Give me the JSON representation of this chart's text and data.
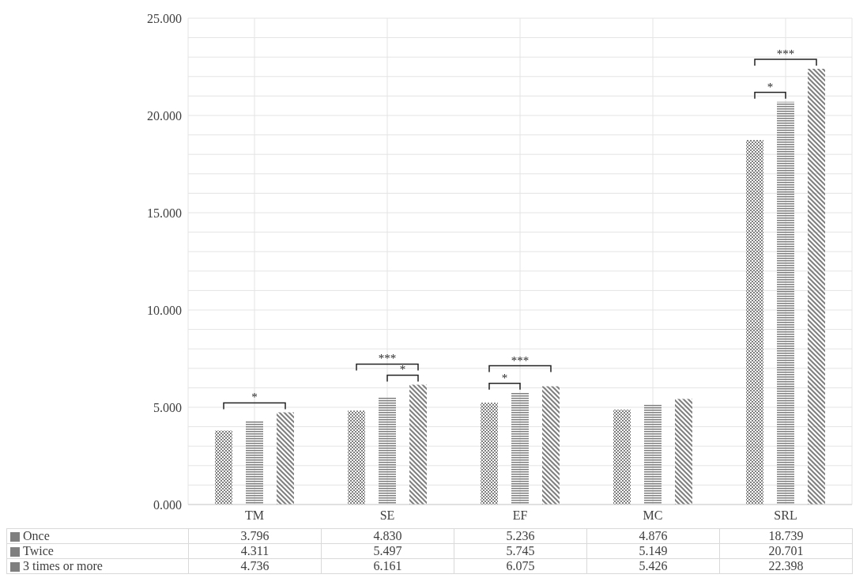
{
  "chart_data": {
    "type": "bar",
    "categories": [
      "TM",
      "SE",
      "EF",
      "MC",
      "SRL"
    ],
    "series": [
      {
        "name": "Once",
        "color": "#7f7f7f",
        "values": [
          3.796,
          4.83,
          5.236,
          4.876,
          18.739
        ],
        "value_labels": [
          "3.796",
          "4.830",
          "5.236",
          "4.876",
          "18.739"
        ]
      },
      {
        "name": "Twice",
        "color": "#7f7f7f",
        "values": [
          4.311,
          5.497,
          5.745,
          5.149,
          20.701
        ],
        "value_labels": [
          "4.311",
          "5.497",
          "5.745",
          "5.149",
          "20.701"
        ]
      },
      {
        "name": "3 times  or more",
        "color": "#7f7f7f",
        "values": [
          4.736,
          6.161,
          6.075,
          5.426,
          22.398
        ],
        "value_labels": [
          "4.736",
          "6.161",
          "6.075",
          "5.426",
          "22.398"
        ]
      }
    ],
    "ylim": [
      0,
      25
    ],
    "yticks": [
      {
        "value": 0,
        "label": "0.000"
      },
      {
        "value": 1,
        "label": null
      },
      {
        "value": 2,
        "label": null
      },
      {
        "value": 3,
        "label": null
      },
      {
        "value": 4,
        "label": null
      },
      {
        "value": 5,
        "label": "5.000"
      },
      {
        "value": 6,
        "label": null
      },
      {
        "value": 7,
        "label": null
      },
      {
        "value": 8,
        "label": null
      },
      {
        "value": 9,
        "label": null
      },
      {
        "value": 10,
        "label": "10.000"
      },
      {
        "value": 11,
        "label": null
      },
      {
        "value": 12,
        "label": null
      },
      {
        "value": 13,
        "label": null
      },
      {
        "value": 14,
        "label": null
      },
      {
        "value": 15,
        "label": "15.000"
      },
      {
        "value": 16,
        "label": null
      },
      {
        "value": 17,
        "label": null
      },
      {
        "value": 18,
        "label": null
      },
      {
        "value": 19,
        "label": null
      },
      {
        "value": 20,
        "label": "20.000"
      },
      {
        "value": 21,
        "label": null
      },
      {
        "value": 22,
        "label": null
      },
      {
        "value": 23,
        "label": null
      },
      {
        "value": 24,
        "label": null
      },
      {
        "value": 25,
        "label": "25.000"
      }
    ],
    "grid": true,
    "legend": "bottom left",
    "annotations": [
      "*",
      "***",
      "*",
      "***",
      "*",
      "***",
      "*"
    ]
  }
}
